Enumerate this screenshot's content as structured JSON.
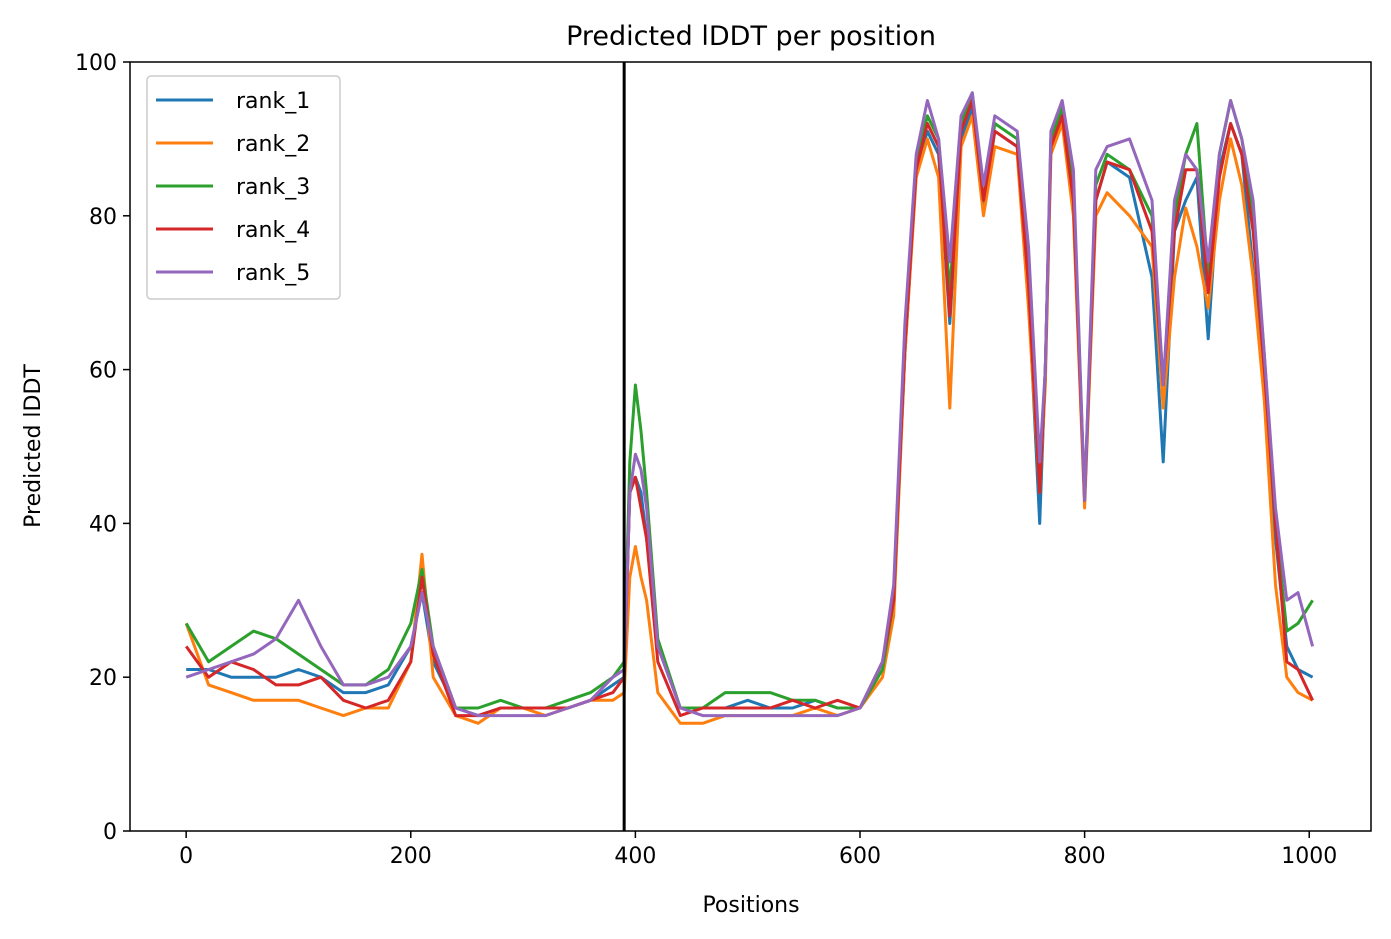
{
  "chart_data": {
    "type": "line",
    "title": "Predicted lDDT per position",
    "xlabel": "Positions",
    "ylabel": "Predicted lDDT",
    "xlim": [
      -50,
      1055
    ],
    "ylim": [
      0,
      100
    ],
    "xticks": [
      0,
      200,
      400,
      600,
      800,
      1000
    ],
    "yticks": [
      0,
      20,
      40,
      60,
      80,
      100
    ],
    "grid": false,
    "legend_position": "top-left",
    "vline_x": 390,
    "colors": {
      "rank_1": "#1f77b4",
      "rank_2": "#ff7f0e",
      "rank_3": "#2ca02c",
      "rank_4": "#d62728",
      "rank_5": "#9467bd",
      "vline": "#000000"
    },
    "series": [
      {
        "name": "rank_1",
        "x": [
          0,
          20,
          40,
          60,
          80,
          100,
          120,
          140,
          160,
          180,
          200,
          210,
          220,
          240,
          260,
          280,
          300,
          320,
          340,
          360,
          380,
          390,
          395,
          400,
          405,
          410,
          420,
          440,
          460,
          480,
          500,
          520,
          540,
          560,
          580,
          600,
          620,
          630,
          640,
          650,
          660,
          670,
          680,
          690,
          700,
          710,
          720,
          740,
          750,
          760,
          765,
          770,
          780,
          790,
          800,
          810,
          820,
          840,
          860,
          870,
          880,
          890,
          900,
          910,
          920,
          930,
          940,
          950,
          960,
          970,
          980,
          990,
          1003
        ],
        "y": [
          21,
          21,
          20,
          20,
          20,
          21,
          20,
          18,
          18,
          19,
          24,
          31,
          22,
          16,
          15,
          16,
          16,
          16,
          16,
          17,
          19,
          20,
          44,
          46,
          44,
          38,
          24,
          16,
          16,
          16,
          17,
          16,
          16,
          17,
          16,
          16,
          22,
          30,
          62,
          86,
          91,
          88,
          66,
          90,
          94,
          81,
          91,
          89,
          70,
          40,
          60,
          89,
          94,
          82,
          43,
          82,
          87,
          85,
          72,
          48,
          78,
          82,
          85,
          64,
          86,
          92,
          88,
          73,
          58,
          38,
          24,
          21,
          20
        ]
      },
      {
        "name": "rank_2",
        "x": [
          0,
          20,
          40,
          60,
          80,
          100,
          120,
          140,
          160,
          180,
          200,
          210,
          220,
          240,
          260,
          280,
          300,
          320,
          340,
          360,
          380,
          390,
          395,
          400,
          405,
          410,
          420,
          440,
          460,
          480,
          500,
          520,
          540,
          560,
          580,
          600,
          620,
          630,
          640,
          650,
          660,
          670,
          680,
          690,
          700,
          710,
          720,
          740,
          750,
          760,
          765,
          770,
          780,
          790,
          800,
          810,
          820,
          840,
          860,
          870,
          880,
          890,
          900,
          910,
          920,
          930,
          940,
          950,
          960,
          970,
          980,
          990,
          1003
        ],
        "y": [
          27,
          19,
          18,
          17,
          17,
          17,
          16,
          15,
          16,
          16,
          22,
          36,
          20,
          15,
          14,
          16,
          16,
          15,
          16,
          17,
          17,
          18,
          33,
          37,
          33,
          30,
          18,
          14,
          14,
          15,
          15,
          15,
          15,
          16,
          15,
          16,
          20,
          28,
          62,
          85,
          90,
          85,
          55,
          89,
          93,
          80,
          89,
          88,
          68,
          44,
          58,
          88,
          92,
          80,
          42,
          80,
          83,
          80,
          76,
          55,
          72,
          81,
          76,
          68,
          82,
          90,
          84,
          72,
          56,
          32,
          20,
          18,
          17
        ]
      },
      {
        "name": "rank_3",
        "x": [
          0,
          20,
          40,
          60,
          80,
          100,
          120,
          140,
          160,
          180,
          200,
          210,
          220,
          240,
          260,
          280,
          300,
          320,
          340,
          360,
          380,
          390,
          395,
          400,
          405,
          410,
          420,
          440,
          460,
          480,
          500,
          520,
          540,
          560,
          580,
          600,
          620,
          630,
          640,
          650,
          660,
          670,
          680,
          690,
          700,
          710,
          720,
          740,
          750,
          760,
          765,
          770,
          780,
          790,
          800,
          810,
          820,
          840,
          860,
          870,
          880,
          890,
          900,
          910,
          920,
          930,
          940,
          950,
          960,
          970,
          980,
          990,
          1003
        ],
        "y": [
          27,
          22,
          24,
          26,
          25,
          23,
          21,
          19,
          19,
          21,
          27,
          34,
          24,
          16,
          16,
          17,
          16,
          16,
          17,
          18,
          20,
          22,
          48,
          58,
          52,
          44,
          25,
          16,
          16,
          18,
          18,
          18,
          17,
          17,
          16,
          16,
          21,
          30,
          64,
          87,
          93,
          90,
          70,
          92,
          96,
          82,
          92,
          90,
          72,
          44,
          60,
          90,
          94,
          84,
          43,
          84,
          88,
          86,
          80,
          58,
          80,
          88,
          92,
          72,
          88,
          95,
          90,
          80,
          62,
          40,
          26,
          27,
          30
        ]
      },
      {
        "name": "rank_4",
        "x": [
          0,
          20,
          40,
          60,
          80,
          100,
          120,
          140,
          160,
          180,
          200,
          210,
          220,
          240,
          260,
          280,
          300,
          320,
          340,
          360,
          380,
          390,
          395,
          400,
          405,
          410,
          420,
          440,
          460,
          480,
          500,
          520,
          540,
          560,
          580,
          600,
          620,
          630,
          640,
          650,
          660,
          670,
          680,
          690,
          700,
          710,
          720,
          740,
          750,
          760,
          765,
          770,
          780,
          790,
          800,
          810,
          820,
          840,
          860,
          870,
          880,
          890,
          900,
          910,
          920,
          930,
          940,
          950,
          960,
          970,
          980,
          990,
          1003
        ],
        "y": [
          24,
          20,
          22,
          21,
          19,
          19,
          20,
          17,
          16,
          17,
          22,
          33,
          23,
          15,
          15,
          16,
          16,
          16,
          16,
          17,
          18,
          20,
          44,
          46,
          42,
          38,
          22,
          15,
          16,
          16,
          16,
          16,
          17,
          16,
          17,
          16,
          22,
          30,
          63,
          86,
          92,
          89,
          67,
          91,
          95,
          82,
          91,
          89,
          71,
          44,
          60,
          89,
          93,
          82,
          43,
          82,
          87,
          86,
          78,
          58,
          78,
          86,
          86,
          70,
          85,
          92,
          88,
          78,
          60,
          40,
          22,
          21,
          17
        ]
      },
      {
        "name": "rank_5",
        "x": [
          0,
          20,
          40,
          60,
          80,
          100,
          120,
          140,
          160,
          180,
          200,
          210,
          220,
          240,
          260,
          280,
          300,
          320,
          340,
          360,
          380,
          390,
          395,
          400,
          405,
          410,
          420,
          440,
          460,
          480,
          500,
          520,
          540,
          560,
          580,
          600,
          620,
          630,
          640,
          650,
          660,
          670,
          680,
          690,
          700,
          710,
          720,
          740,
          750,
          760,
          765,
          770,
          780,
          790,
          800,
          810,
          820,
          840,
          860,
          870,
          880,
          890,
          900,
          910,
          920,
          930,
          940,
          950,
          960,
          970,
          980,
          990,
          1003
        ],
        "y": [
          20,
          21,
          22,
          23,
          25,
          30,
          24,
          19,
          19,
          20,
          24,
          31,
          24,
          16,
          15,
          15,
          15,
          15,
          16,
          17,
          20,
          21,
          44,
          49,
          47,
          42,
          24,
          16,
          15,
          15,
          15,
          15,
          15,
          15,
          15,
          16,
          22,
          32,
          66,
          88,
          95,
          90,
          74,
          93,
          96,
          84,
          93,
          91,
          76,
          48,
          60,
          91,
          95,
          86,
          43,
          86,
          89,
          90,
          82,
          58,
          82,
          88,
          86,
          74,
          88,
          95,
          90,
          82,
          62,
          42,
          30,
          31,
          24
        ]
      }
    ]
  }
}
